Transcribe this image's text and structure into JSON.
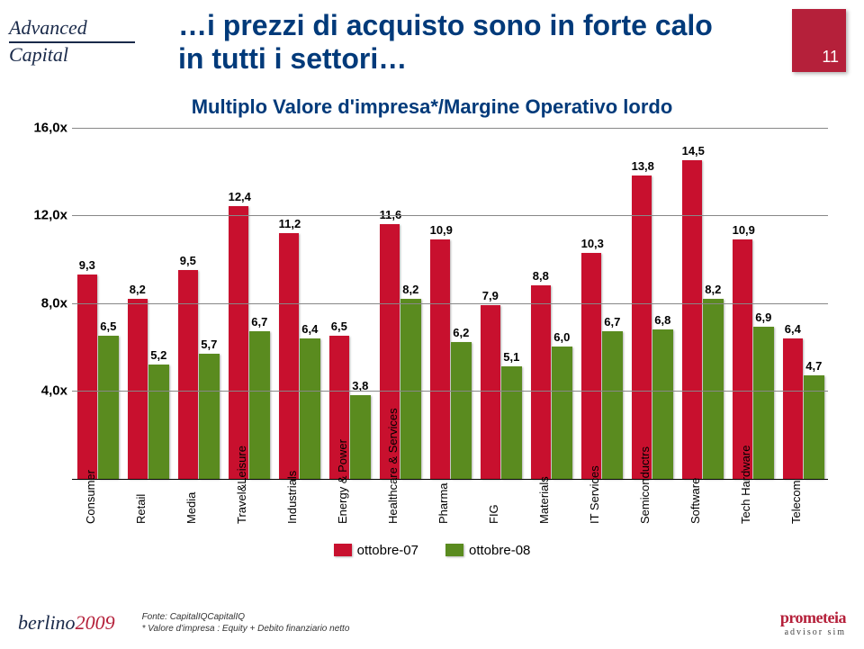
{
  "page_number": "11",
  "title_line1": "…i prezzi di acquisto sono in forte calo",
  "title_line2": "in tutti i settori…",
  "subtitle": "Multiplo Valore d'impresa*/Margine Operativo lordo",
  "logo_top": "Advanced",
  "logo_bottom": "Capital",
  "footer_brand_a": "berlino",
  "footer_brand_year": "2009",
  "footer_note1": "Fonte: CapitalIQCapitalIQ",
  "footer_note2": "* Valore d'impresa : Equity + Debito finanziario netto",
  "footer_right1": "prometeia",
  "footer_right2": "advisor sim",
  "chart": {
    "type": "bar",
    "y_min": 0,
    "y_max": 16,
    "y_ticks": [
      4,
      8,
      12,
      16
    ],
    "y_tick_labels": [
      "4,0x",
      "8,0x",
      "12,0x",
      "16,0x"
    ],
    "series": [
      {
        "name": "ottobre-07",
        "color": "#c8102e"
      },
      {
        "name": "ottobre-08",
        "color": "#5a8b1f"
      }
    ],
    "background_color": "#ffffff",
    "grid_color": "#888888",
    "label_fontsize": 13,
    "categories": [
      {
        "label": "Consumer",
        "a": 9.3,
        "a_lbl": "9,3",
        "b": 6.5,
        "b_lbl": "6,5"
      },
      {
        "label": "Retail",
        "a": 8.2,
        "a_lbl": "8,2",
        "b": 5.2,
        "b_lbl": "5,2"
      },
      {
        "label": "Media",
        "a": 9.5,
        "a_lbl": "9,5",
        "b": 5.7,
        "b_lbl": "5,7"
      },
      {
        "label": "Travel&Leisure",
        "a": 12.4,
        "a_lbl": "12,4",
        "b": 6.7,
        "b_lbl": "6,7"
      },
      {
        "label": "Industrials",
        "a": 11.2,
        "a_lbl": "11,2",
        "b": 6.4,
        "b_lbl": "6,4"
      },
      {
        "label": "Energy & Power",
        "a": 6.5,
        "a_lbl": "6,5",
        "b": 3.8,
        "b_lbl": "3,8"
      },
      {
        "label": "Healthcare & Services",
        "a": 11.6,
        "a_lbl": "11,6",
        "b": 8.2,
        "b_lbl": "8,2"
      },
      {
        "label": "Pharma",
        "a": 10.9,
        "a_lbl": "10,9",
        "b": 6.2,
        "b_lbl": "6,2"
      },
      {
        "label": "FIG",
        "a": 7.9,
        "a_lbl": "7,9",
        "b": 5.1,
        "b_lbl": "5,1"
      },
      {
        "label": "Materials",
        "a": 8.8,
        "a_lbl": "8,8",
        "b": 6.0,
        "b_lbl": "6,0"
      },
      {
        "label": "IT Services",
        "a": 10.3,
        "a_lbl": "10,3",
        "b": 6.7,
        "b_lbl": "6,7"
      },
      {
        "label": "Semiconductrs",
        "a": 13.8,
        "a_lbl": "13,8",
        "b": 6.8,
        "b_lbl": "6,8"
      },
      {
        "label": "Software",
        "a": 14.5,
        "a_lbl": "14,5",
        "b": 8.2,
        "b_lbl": "8,2"
      },
      {
        "label": "Tech Hardware",
        "a": 10.9,
        "a_lbl": "10,9",
        "b": 6.9,
        "b_lbl": "6,9"
      },
      {
        "label": "Telecom",
        "a": 6.4,
        "a_lbl": "6,4",
        "b": 4.7,
        "b_lbl": "4,7"
      }
    ],
    "legend_labels": [
      "ottobre-07",
      "ottobre-08"
    ]
  }
}
